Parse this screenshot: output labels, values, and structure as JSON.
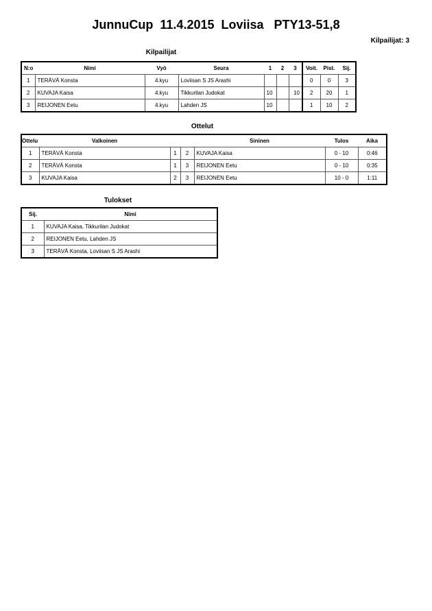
{
  "title": "JunnuCup  11.4.2015  Loviisa   PTY13-51,8",
  "competitor_count": {
    "label": "Kilpailijat:",
    "value": "3"
  },
  "competitors": {
    "heading": "Kilpailijat",
    "columns": [
      "N:o",
      "Nimi",
      "Vyö",
      "Seura",
      "1",
      "2",
      "3",
      "Voit.",
      "Pist.",
      "Sij."
    ],
    "rows": [
      [
        "1",
        "TERÄVÄ Konsta",
        "4.kyu",
        "Loviisan S JS Arashi",
        "",
        "",
        "",
        "0",
        "0",
        "3"
      ],
      [
        "2",
        "KUVAJA Kaisa",
        "4.kyu",
        "Tikkurilan Judokat",
        "10",
        "",
        "10",
        "2",
        "20",
        "1"
      ],
      [
        "3",
        "REIJONEN Eetu",
        "4.kyu",
        "Lahden JS",
        "10",
        "",
        "",
        "1",
        "10",
        "2"
      ]
    ]
  },
  "matches": {
    "heading": "Ottelut",
    "columns": [
      "Ottelu",
      "Valkoinen",
      "",
      "",
      "Sininen",
      "Tulos",
      "Aika"
    ],
    "rows": [
      [
        "1",
        "TERÄVÄ Konsta",
        "1",
        "2",
        "KUVAJA Kaisa",
        "0 - 10",
        "0:46"
      ],
      [
        "2",
        "TERÄVÄ Konsta",
        "1",
        "3",
        "REIJONEN Eetu",
        "0 - 10",
        "0:35"
      ],
      [
        "3",
        "KUVAJA Kaisa",
        "2",
        "3",
        "REIJONEN Eetu",
        "10 - 0",
        "1:11"
      ]
    ]
  },
  "results": {
    "heading": "Tulokset",
    "columns": [
      "Sij.",
      "Nimi"
    ],
    "rows": [
      [
        "1",
        "KUVAJA Kaisa, Tikkurilan Judokat"
      ],
      [
        "2",
        "REIJONEN Eetu, Lahden JS"
      ],
      [
        "3",
        "TERÄVÄ Konsta, Loviisan S JS Arashi"
      ]
    ]
  }
}
